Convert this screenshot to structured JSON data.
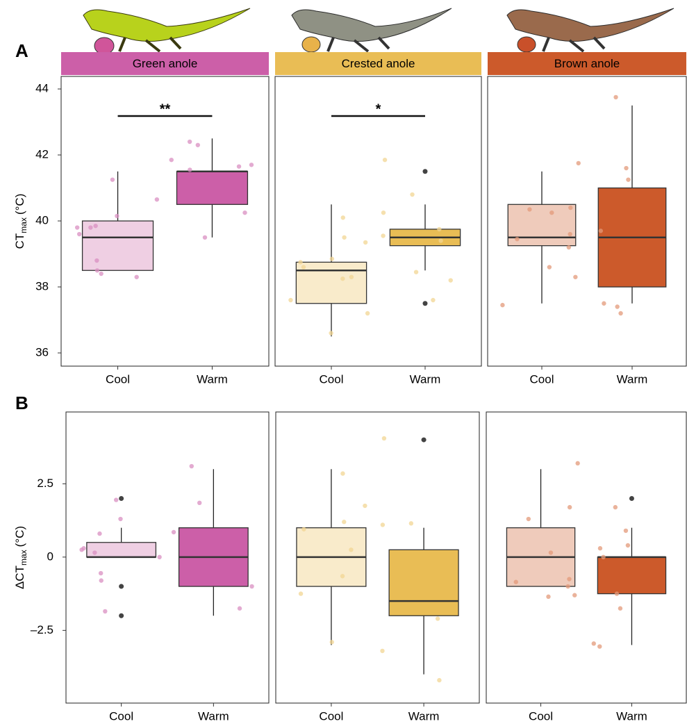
{
  "chart_data": [
    {
      "type": "box",
      "label": "A",
      "ylabel": {
        "main": "CT",
        "sub": "max",
        "unit": "(°C)"
      },
      "categories": [
        "Cool",
        "Warm"
      ],
      "ylim": [
        35.6,
        44.38
      ],
      "yticks": [
        36,
        38,
        40,
        42,
        44
      ],
      "facets": [
        {
          "title": "Green anole",
          "colors": [
            "#efcfe3",
            "#cc5fa8"
          ],
          "point_color": "#d98fc2",
          "signif": "**",
          "boxes": [
            {
              "q1": 38.5,
              "median": 39.5,
              "q3": 40.0,
              "whisker_low": 38.5,
              "whisker_high": 41.5,
              "outliers": [],
              "points": [
                41.25,
                40.15,
                39.85,
                39.8,
                39.8,
                39.6,
                40.65,
                38.8,
                38.5,
                38.4,
                38.3
              ]
            },
            {
              "q1": 40.5,
              "median": 41.5,
              "q3": 41.5,
              "whisker_low": 39.5,
              "whisker_high": 42.5,
              "outliers": [],
              "points": [
                42.4,
                42.3,
                41.85,
                41.7,
                41.65,
                41.55,
                40.25,
                39.5
              ]
            }
          ]
        },
        {
          "title": "Crested anole",
          "colors": [
            "#f9ebcb",
            "#e9bd55"
          ],
          "point_color": "#f2d593",
          "signif": "*",
          "boxes": [
            {
              "q1": 37.5,
              "median": 38.5,
              "q3": 38.75,
              "whisker_low": 36.5,
              "whisker_high": 40.5,
              "outliers": [],
              "points": [
                40.1,
                39.35,
                39.5,
                38.6,
                38.3,
                38.25,
                38.75,
                38.85,
                37.6,
                37.2,
                36.6
              ]
            },
            {
              "q1": 39.25,
              "median": 39.5,
              "q3": 39.75,
              "whisker_low": 38.5,
              "whisker_high": 40.5,
              "outliers": [
                41.5,
                37.5
              ],
              "points": [
                41.85,
                40.8,
                40.25,
                39.75,
                39.55,
                39.4,
                38.45,
                38.2,
                37.6
              ]
            }
          ]
        },
        {
          "title": "Brown anole",
          "colors": [
            "#efcbbb",
            "#cc5a2b"
          ],
          "point_color": "#e39a79",
          "boxes": [
            {
              "q1": 39.25,
              "median": 39.5,
              "q3": 40.5,
              "whisker_low": 37.5,
              "whisker_high": 41.5,
              "outliers": [],
              "points": [
                41.75,
                40.4,
                40.35,
                40.25,
                39.6,
                39.45,
                39.2,
                38.3,
                38.6,
                37.45
              ]
            },
            {
              "q1": 38.0,
              "median": 39.5,
              "q3": 41.0,
              "whisker_low": 37.5,
              "whisker_high": 43.5,
              "outliers": [],
              "points": [
                43.75,
                41.6,
                41.25,
                39.7,
                37.5,
                37.4,
                37.2
              ]
            }
          ]
        }
      ]
    },
    {
      "type": "box",
      "label": "B",
      "ylabel": {
        "main": "ΔCT",
        "sub": "max",
        "unit": "(°C)"
      },
      "categories": [
        "Cool",
        "Warm"
      ],
      "ylim": [
        -4.98,
        4.95
      ],
      "yticks": [
        {
          "value": -2.5,
          "label": "–2.5"
        },
        0,
        2.5
      ],
      "facets": [
        {
          "colors": [
            "#efcfe3",
            "#cc5fa8"
          ],
          "point_color": "#d98fc2",
          "boxes": [
            {
              "q1": 0,
              "median": 0,
              "q3": 0.5,
              "whisker_low": 0,
              "whisker_high": 1,
              "outliers": [
                2,
                -1,
                -2
              ],
              "points": [
                1.95,
                1.3,
                0.8,
                0.25,
                0.15,
                0.3,
                0,
                -0.55,
                -0.8,
                -1.85
              ]
            },
            {
              "q1": -1,
              "median": 0,
              "q3": 1,
              "whisker_low": -2,
              "whisker_high": 3,
              "outliers": [],
              "points": [
                3.1,
                1.85,
                0.85,
                -1.0,
                -1.75
              ]
            }
          ]
        },
        {
          "colors": [
            "#f9ebcb",
            "#e9bd55"
          ],
          "point_color": "#f2d593",
          "boxes": [
            {
              "q1": -1,
              "median": 0,
              "q3": 1,
              "whisker_low": -3,
              "whisker_high": 3,
              "outliers": [],
              "points": [
                2.85,
                1.75,
                1.2,
                0.95,
                0.25,
                -0.65,
                -1.25,
                -2.9
              ]
            },
            {
              "q1": -2,
              "median": -1.5,
              "q3": 0.25,
              "whisker_low": -4,
              "whisker_high": 1,
              "outliers": [
                4
              ],
              "points": [
                4.05,
                1.15,
                1.1,
                -2.1,
                -3.2,
                -4.2
              ]
            }
          ]
        },
        {
          "colors": [
            "#efcbbb",
            "#cc5a2b"
          ],
          "point_color": "#e39a79",
          "boxes": [
            {
              "q1": -1,
              "median": 0,
              "q3": 1,
              "whisker_low": -1,
              "whisker_high": 3,
              "outliers": [],
              "points": [
                3.2,
                1.7,
                1.3,
                0.15,
                -0.75,
                -0.85,
                -1.0,
                -1.3,
                -1.35
              ]
            },
            {
              "q1": -1.25,
              "median": 0,
              "q3": 0,
              "whisker_low": -3,
              "whisker_high": 1,
              "outliers": [
                2
              ],
              "points": [
                1.7,
                0.9,
                0.4,
                0.3,
                0,
                -1.25,
                -1.75,
                -2.95,
                -3.05
              ]
            }
          ]
        }
      ]
    }
  ]
}
